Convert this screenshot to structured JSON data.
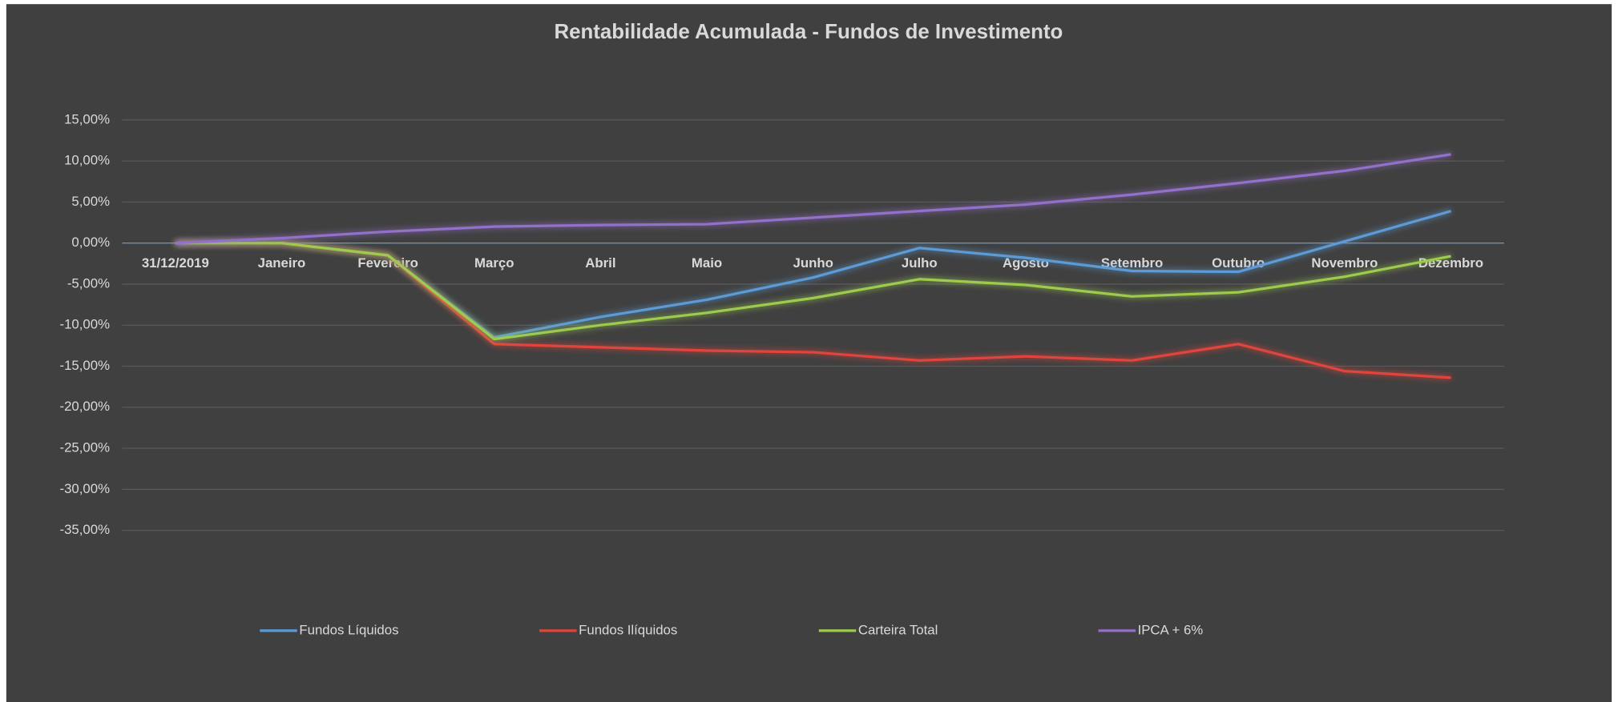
{
  "chart_data": {
    "type": "line",
    "title": "Rentabilidade Acumulada - Fundos de Investimento",
    "categories": [
      "31/12/2019",
      "Janeiro",
      "Fevereiro",
      "Março",
      "Abril",
      "Maio",
      "Junho",
      "Julho",
      "Agosto",
      "Setembro",
      "Outubro",
      "Novembro",
      "Dezembro"
    ],
    "series": [
      {
        "name": "Fundos Líquidos",
        "color": "#5b9bd5",
        "values": [
          0,
          0,
          -1.5,
          -11.5,
          -9,
          -6.9,
          -4.2,
          -0.6,
          -1.8,
          -3.4,
          -3.5,
          0.2,
          3.9
        ]
      },
      {
        "name": "Fundos Ilíquidos",
        "color": "#e0453c",
        "values": [
          0,
          0,
          -1.5,
          -12.3,
          -12.7,
          -13.1,
          -13.3,
          -14.3,
          -13.8,
          -14.3,
          -12.3,
          -15.6,
          -16.4
        ]
      },
      {
        "name": "Carteira Total",
        "color": "#9ccb4e",
        "values": [
          0,
          0,
          -1.5,
          -11.7,
          -10,
          -8.5,
          -6.7,
          -4.4,
          -5.1,
          -6.5,
          -6,
          -4.1,
          -1.6
        ]
      },
      {
        "name": "IPCA + 6%",
        "color": "#9370c9",
        "values": [
          0,
          0.6,
          1.4,
          2,
          2.2,
          2.3,
          3.1,
          3.9,
          4.7,
          5.9,
          7.3,
          8.8,
          10.8
        ]
      }
    ],
    "ylim": [
      -35,
      15
    ],
    "yticks": [
      {
        "value": 15,
        "label": "15,00%"
      },
      {
        "value": 10,
        "label": "10,00%"
      },
      {
        "value": 5,
        "label": "5,00%"
      },
      {
        "value": 0,
        "label": "0,00%"
      },
      {
        "value": -5,
        "label": "-5,00%"
      },
      {
        "value": -10,
        "label": "-10,00%"
      },
      {
        "value": -15,
        "label": "-15,00%"
      },
      {
        "value": -20,
        "label": "-20,00%"
      },
      {
        "value": -25,
        "label": "-25,00%"
      },
      {
        "value": -30,
        "label": "-30,00%"
      },
      {
        "value": -35,
        "label": "-35,00%"
      }
    ],
    "grid": true,
    "legend": "bottom"
  }
}
